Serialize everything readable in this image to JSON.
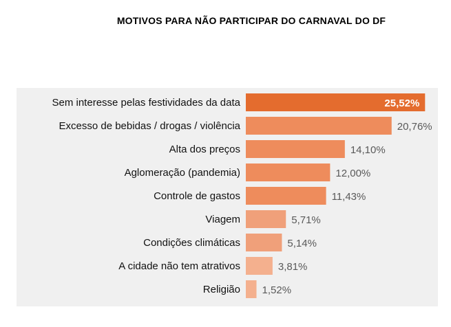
{
  "chart_data": {
    "type": "bar",
    "orientation": "horizontal",
    "title": "MOTIVOS PARA NÃO PARTICIPAR DO CARNAVAL DO DF",
    "categories": [
      "Sem interesse pelas festividades da data",
      "Excesso de bebidas / drogas / violência",
      "Alta dos preços",
      "Aglomeração (pandemia)",
      "Controle de gastos",
      "Viagem",
      "Condições climáticas",
      "A cidade não tem atrativos",
      "Religião"
    ],
    "values": [
      25.52,
      20.76,
      14.1,
      12.0,
      11.43,
      5.71,
      5.14,
      3.81,
      1.52
    ],
    "value_labels": [
      "25,52%",
      "20,76%",
      "14,10%",
      "12,00%",
      "11,43%",
      "5,71%",
      "5,14%",
      "3,81%",
      "1,52%"
    ],
    "xlim": [
      0,
      28
    ],
    "grid": false,
    "legend": "none",
    "colors": {
      "highlight": "#e46c2e",
      "strong": "#ee8c5c",
      "medium": "#f0a07a",
      "light": "#f4b08e",
      "text": "#111111",
      "value_text": "#595959",
      "plot_background": "#f0f0f0"
    }
  }
}
